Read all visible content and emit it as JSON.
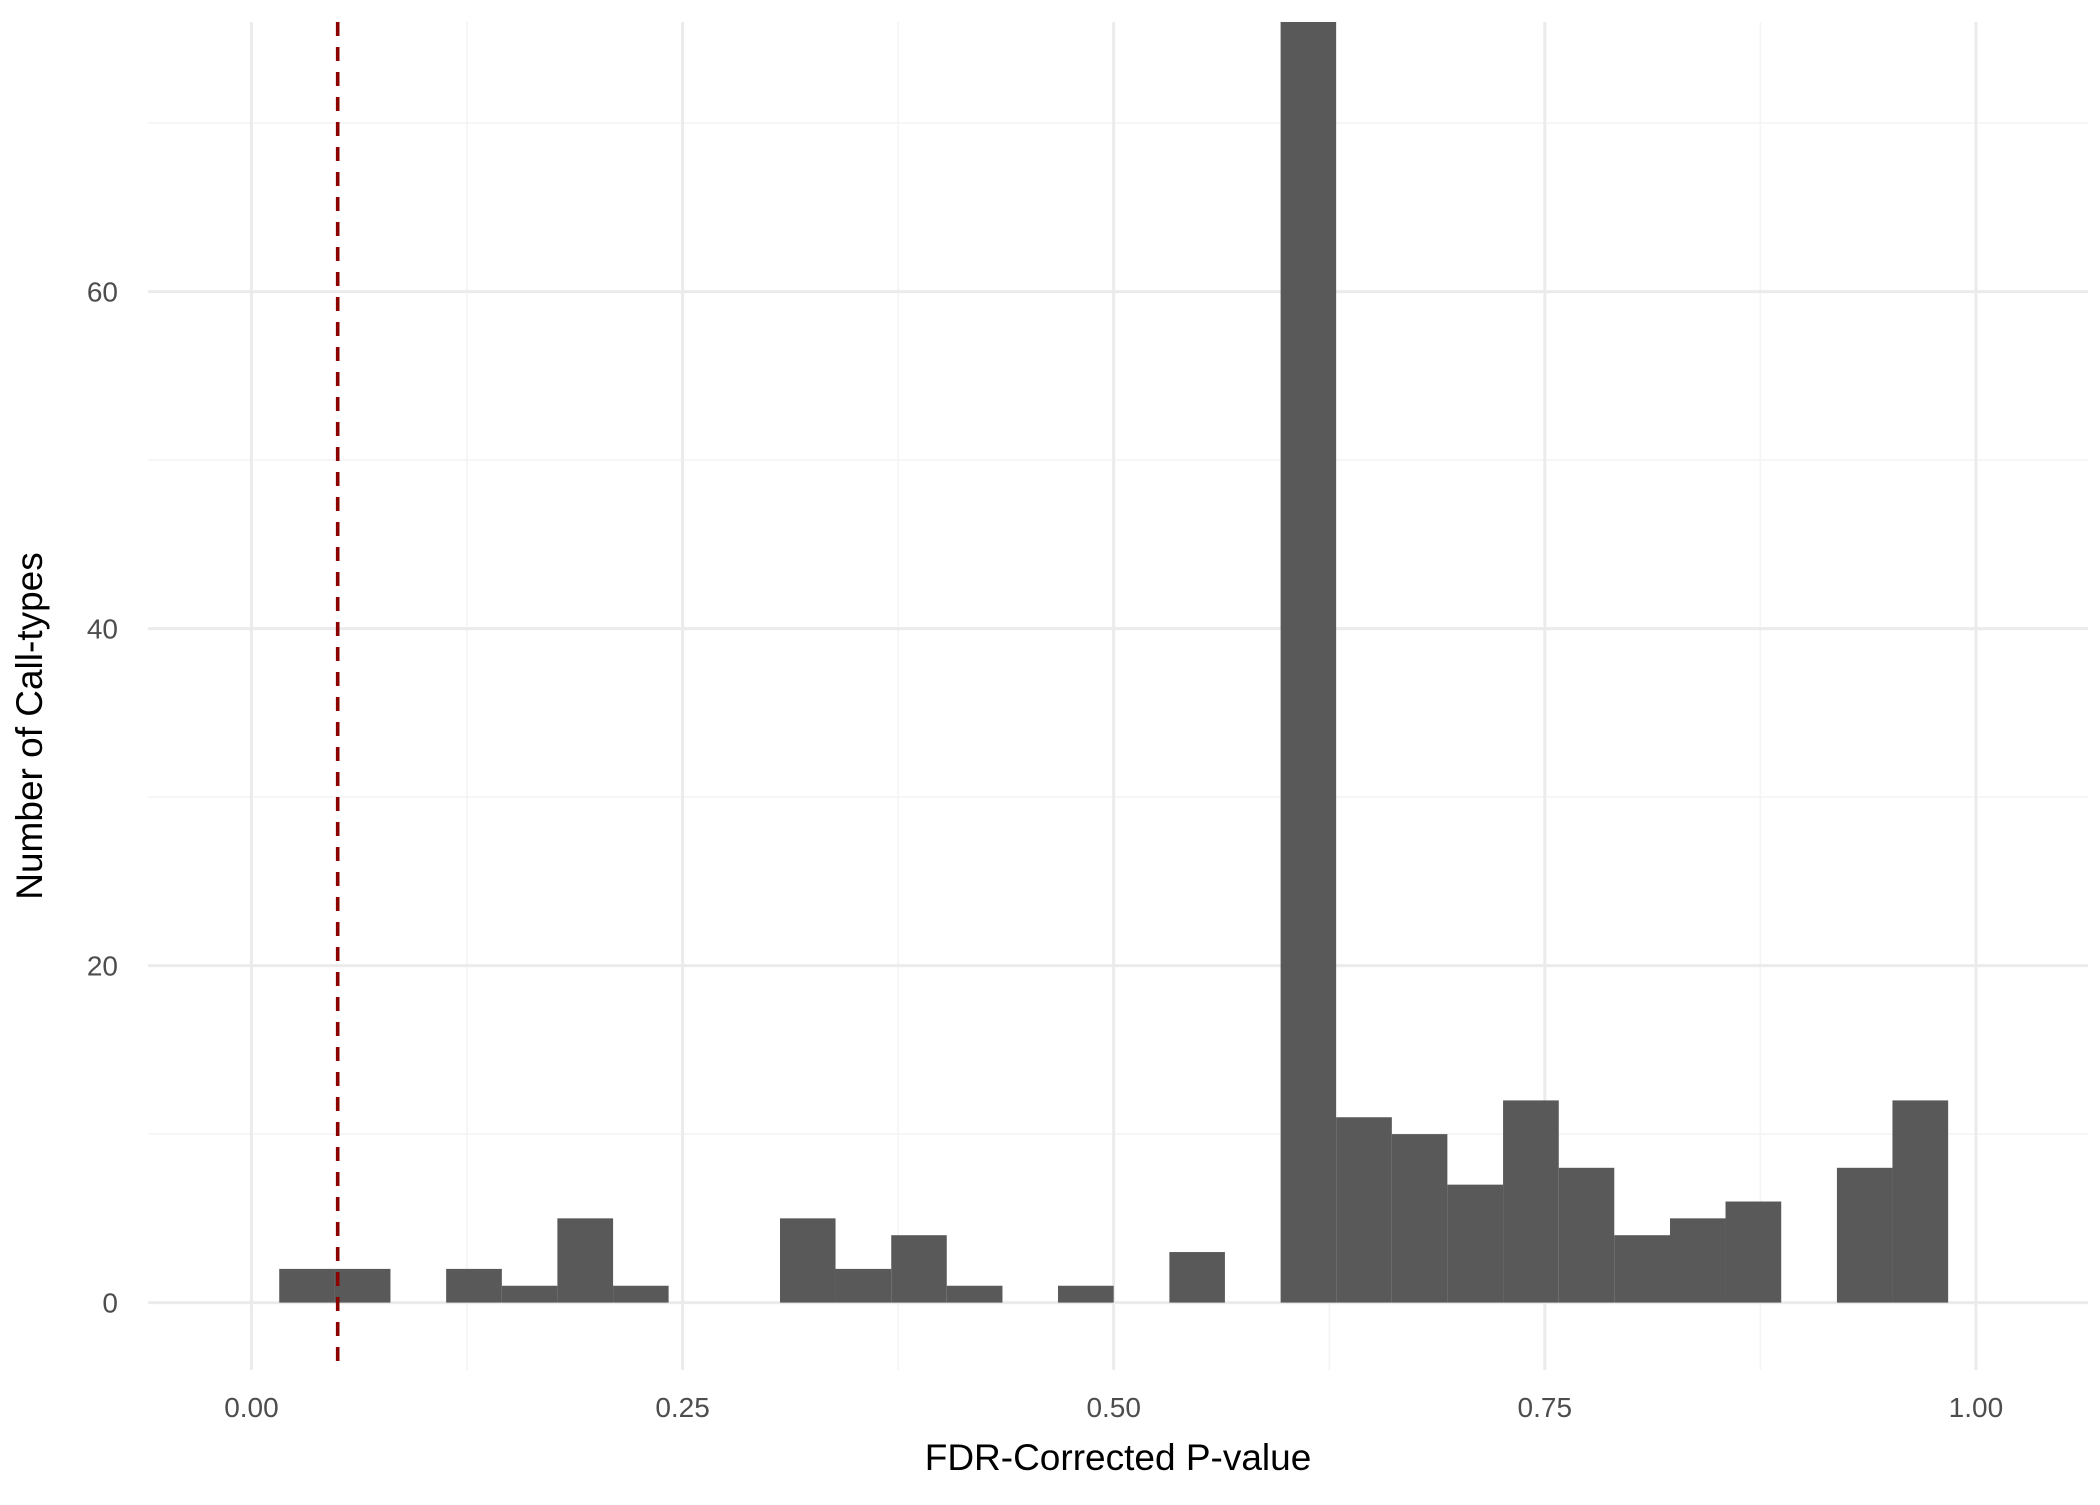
{
  "chart_data": {
    "type": "bar",
    "subtype": "histogram",
    "title": "",
    "xlabel": "FDR-Corrected P-value",
    "ylabel": "Number of Call-types",
    "xlim": [
      -0.06,
      1.065
    ],
    "ylim": [
      -4,
      76
    ],
    "x_ticks": [
      0.0,
      0.25,
      0.5,
      0.75,
      1.0
    ],
    "x_tick_labels": [
      "0.00",
      "0.25",
      "0.50",
      "0.75",
      "1.00"
    ],
    "x_minor_ticks": [
      0.125,
      0.375,
      0.625,
      0.875
    ],
    "y_ticks": [
      0,
      20,
      40,
      60
    ],
    "y_tick_labels": [
      "0",
      "20",
      "40",
      "60"
    ],
    "y_minor_ticks": [
      10,
      30,
      50,
      70
    ],
    "grid": true,
    "legend": "none",
    "bin_width": 0.0323,
    "bins": [
      {
        "x0": 0.0161,
        "x1": 0.0484,
        "count": 2
      },
      {
        "x0": 0.0484,
        "x1": 0.0806,
        "count": 2
      },
      {
        "x0": 0.0806,
        "x1": 0.1129,
        "count": 0
      },
      {
        "x0": 0.1129,
        "x1": 0.1452,
        "count": 2
      },
      {
        "x0": 0.1452,
        "x1": 0.1774,
        "count": 1
      },
      {
        "x0": 0.1774,
        "x1": 0.2097,
        "count": 5
      },
      {
        "x0": 0.2097,
        "x1": 0.2419,
        "count": 1
      },
      {
        "x0": 0.2419,
        "x1": 0.2742,
        "count": 0
      },
      {
        "x0": 0.2742,
        "x1": 0.3065,
        "count": 0
      },
      {
        "x0": 0.3065,
        "x1": 0.3387,
        "count": 5
      },
      {
        "x0": 0.3387,
        "x1": 0.371,
        "count": 2
      },
      {
        "x0": 0.371,
        "x1": 0.4032,
        "count": 4
      },
      {
        "x0": 0.4032,
        "x1": 0.4355,
        "count": 1
      },
      {
        "x0": 0.4355,
        "x1": 0.4677,
        "count": 0
      },
      {
        "x0": 0.4677,
        "x1": 0.5,
        "count": 1
      },
      {
        "x0": 0.5,
        "x1": 0.5323,
        "count": 0
      },
      {
        "x0": 0.5323,
        "x1": 0.5645,
        "count": 3
      },
      {
        "x0": 0.5645,
        "x1": 0.5968,
        "count": 0
      },
      {
        "x0": 0.5968,
        "x1": 0.629,
        "count": 76
      },
      {
        "x0": 0.629,
        "x1": 0.6613,
        "count": 11
      },
      {
        "x0": 0.6613,
        "x1": 0.6935,
        "count": 10
      },
      {
        "x0": 0.6935,
        "x1": 0.7258,
        "count": 7
      },
      {
        "x0": 0.7258,
        "x1": 0.7581,
        "count": 12
      },
      {
        "x0": 0.7581,
        "x1": 0.7903,
        "count": 8
      },
      {
        "x0": 0.7903,
        "x1": 0.8226,
        "count": 4
      },
      {
        "x0": 0.8226,
        "x1": 0.8548,
        "count": 5
      },
      {
        "x0": 0.8548,
        "x1": 0.8871,
        "count": 6
      },
      {
        "x0": 0.8871,
        "x1": 0.9194,
        "count": 0
      },
      {
        "x0": 0.9194,
        "x1": 0.9516,
        "count": 8
      },
      {
        "x0": 0.9516,
        "x1": 0.9839,
        "count": 12
      }
    ],
    "reference_line": {
      "x": 0.05,
      "style": "dashed",
      "color": "#8B0000"
    },
    "colors": {
      "bar_fill": "#595959",
      "major_grid": "#ebebeb",
      "minor_grid": "#f4f4f4",
      "tick_text": "#4d4d4d",
      "axis_title": "#000000"
    }
  }
}
